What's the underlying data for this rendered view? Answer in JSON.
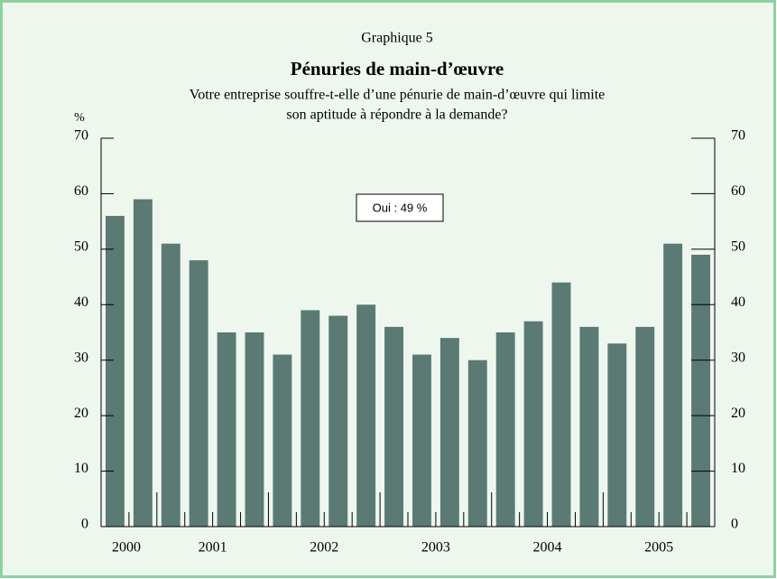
{
  "chart_data": {
    "type": "bar",
    "supertitle": "Graphique 5",
    "title": "Pénuries de main-d’œuvre",
    "subtitle": [
      "Votre entreprise souffre-t-elle d’une pénurie de main-d’œuvre qui limite",
      "son aptitude à répondre à la demande?"
    ],
    "y_label": "%",
    "annotation": "Oui : 49 %",
    "categories": [
      "2000",
      null,
      null,
      null,
      "2001",
      null,
      null,
      null,
      "2002",
      null,
      null,
      null,
      "2003",
      null,
      null,
      null,
      "2004",
      null,
      null,
      null,
      "2005",
      null
    ],
    "values": [
      56,
      59,
      51,
      48,
      35,
      35,
      31,
      39,
      38,
      40,
      36,
      31,
      34,
      30,
      35,
      37,
      44,
      36,
      33,
      36,
      51,
      49
    ],
    "color": "#5b7a74",
    "ylim": [
      0,
      70
    ],
    "yticks": [
      0,
      10,
      20,
      30,
      40,
      50,
      60,
      70
    ],
    "right_axis": true
  }
}
